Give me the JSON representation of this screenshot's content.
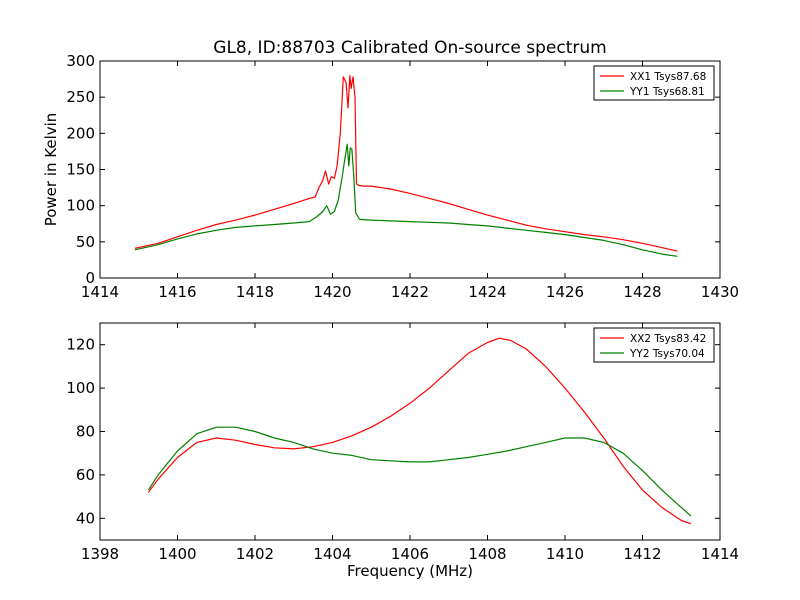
{
  "title": "GL8, ID:88703 Calibrated On-source spectrum",
  "chart_data": [
    {
      "type": "line",
      "ylabel": "Power in Kelvin",
      "xlabel": "",
      "xlim": [
        1414,
        1430
      ],
      "ylim": [
        0,
        300
      ],
      "xticks": [
        "1414",
        "1416",
        "1418",
        "1420",
        "1422",
        "1424",
        "1426",
        "1428",
        "1430"
      ],
      "yticks": [
        "0",
        "50",
        "100",
        "150",
        "200",
        "250",
        "300"
      ],
      "legend_position": "top-right",
      "series": [
        {
          "name": "XX1 Tsys87.68",
          "color": "#ff0000",
          "x": [
            1414.9,
            1415.5,
            1416.0,
            1416.5,
            1417.0,
            1417.5,
            1418.0,
            1418.5,
            1419.0,
            1419.4,
            1419.55,
            1419.65,
            1419.75,
            1419.82,
            1419.9,
            1419.97,
            1420.05,
            1420.12,
            1420.2,
            1420.28,
            1420.35,
            1420.4,
            1420.45,
            1420.48,
            1420.53,
            1420.58,
            1420.62,
            1420.68,
            1420.8,
            1421.0,
            1421.5,
            1422.0,
            1422.5,
            1423.0,
            1423.5,
            1424.0,
            1424.5,
            1425.0,
            1425.5,
            1426.0,
            1426.5,
            1427.0,
            1427.5,
            1428.0,
            1428.5,
            1428.9
          ],
          "values": [
            41,
            48,
            57,
            66,
            74,
            80,
            87,
            95,
            103,
            110,
            112,
            125,
            135,
            148,
            130,
            140,
            138,
            155,
            200,
            278,
            270,
            235,
            280,
            262,
            278,
            250,
            130,
            128,
            127,
            127,
            123,
            117,
            110,
            103,
            95,
            87,
            80,
            73,
            68,
            64,
            60,
            57,
            53,
            48,
            42,
            37
          ]
        },
        {
          "name": "YY1 Tsys68.81",
          "color": "#008000",
          "x": [
            1414.9,
            1415.5,
            1416.0,
            1416.5,
            1417.0,
            1417.5,
            1418.0,
            1418.5,
            1419.0,
            1419.4,
            1419.6,
            1419.75,
            1419.85,
            1419.95,
            1420.05,
            1420.15,
            1420.25,
            1420.32,
            1420.38,
            1420.42,
            1420.46,
            1420.5,
            1420.55,
            1420.6,
            1420.7,
            1421.0,
            1421.5,
            1422.0,
            1422.5,
            1423.0,
            1423.5,
            1424.0,
            1424.5,
            1425.0,
            1425.5,
            1426.0,
            1426.5,
            1427.0,
            1427.5,
            1428.0,
            1428.5,
            1428.9
          ],
          "values": [
            39,
            46,
            54,
            61,
            66,
            70,
            72,
            74,
            76,
            78,
            85,
            92,
            100,
            88,
            92,
            108,
            140,
            165,
            185,
            155,
            180,
            178,
            140,
            90,
            81,
            80,
            79,
            78,
            77,
            76,
            74,
            72,
            69,
            66,
            63,
            60,
            56,
            52,
            46,
            39,
            33,
            30
          ]
        }
      ]
    },
    {
      "type": "line",
      "ylabel": "",
      "xlabel": "Frequency (MHz)",
      "xlim": [
        1398,
        1414
      ],
      "ylim": [
        30,
        130
      ],
      "xticks": [
        "1398",
        "1400",
        "1402",
        "1404",
        "1406",
        "1408",
        "1410",
        "1412",
        "1414"
      ],
      "yticks": [
        "40",
        "60",
        "80",
        "100",
        "120"
      ],
      "ytick_values": [
        40,
        60,
        80,
        100,
        120
      ],
      "legend_position": "top-right",
      "series": [
        {
          "name": "XX2 Tsys83.42",
          "color": "#ff0000",
          "x": [
            1399.25,
            1399.5,
            1400.0,
            1400.5,
            1401.0,
            1401.5,
            1402.0,
            1402.5,
            1403.0,
            1403.5,
            1404.0,
            1404.5,
            1405.0,
            1405.5,
            1406.0,
            1406.5,
            1407.0,
            1407.5,
            1408.0,
            1408.3,
            1408.6,
            1409.0,
            1409.5,
            1410.0,
            1410.5,
            1411.0,
            1411.5,
            1412.0,
            1412.5,
            1413.0,
            1413.25
          ],
          "values": [
            52,
            58,
            68,
            75,
            77,
            76,
            74,
            72.5,
            72,
            73,
            75,
            78,
            82,
            87,
            93,
            100,
            108,
            116,
            121,
            123,
            122,
            118,
            110,
            100,
            89,
            77,
            64,
            53,
            45,
            39,
            37.5
          ]
        },
        {
          "name": "YY2 Tsys70.04",
          "color": "#008000",
          "x": [
            1399.25,
            1399.5,
            1400.0,
            1400.5,
            1401.0,
            1401.5,
            1402.0,
            1402.5,
            1403.0,
            1403.5,
            1404.0,
            1404.5,
            1405.0,
            1405.5,
            1406.0,
            1406.5,
            1407.0,
            1407.5,
            1408.0,
            1408.5,
            1409.0,
            1409.5,
            1410.0,
            1410.5,
            1411.0,
            1411.5,
            1412.0,
            1412.5,
            1413.0,
            1413.25
          ],
          "values": [
            53,
            60,
            71,
            79,
            82,
            82,
            80,
            77,
            75,
            72,
            70,
            69,
            67,
            66.5,
            66,
            66,
            67,
            68,
            69.5,
            71,
            73,
            75,
            77,
            77,
            75,
            70,
            62,
            53,
            45,
            41
          ]
        }
      ]
    }
  ]
}
